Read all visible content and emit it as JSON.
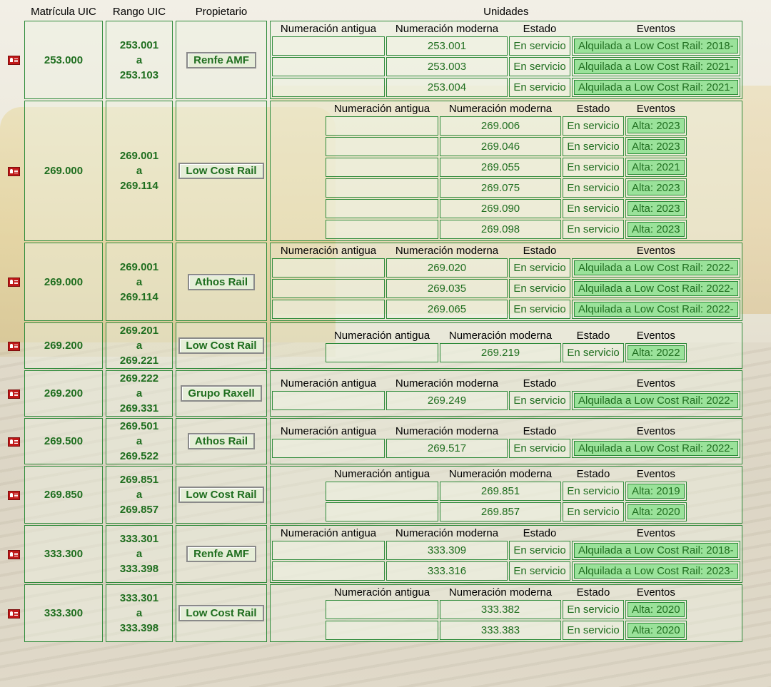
{
  "headers": {
    "matricula": "Matrícula UIC",
    "rango": "Rango UIC",
    "propietario": "Propietario",
    "unidades": "Unidades"
  },
  "sub_headers": {
    "old": "Numeración antigua",
    "modern": "Numeración moderna",
    "estado": "Estado",
    "eventos": "Eventos"
  },
  "range_separator": "a",
  "icon": "id-card-icon",
  "colors": {
    "border": "#2e8b3a",
    "text": "#1f6e1f",
    "event_bg": "#9ae29a"
  },
  "groups": [
    {
      "matricula": "253.000",
      "range_from": "253.001",
      "range_to": "253.103",
      "owner": "Renfe AMF",
      "units": [
        {
          "old": "",
          "modern": "253.001",
          "estado": "En servicio",
          "evento": "Alquilada a Low Cost Rail: 2018-"
        },
        {
          "old": "",
          "modern": "253.003",
          "estado": "En servicio",
          "evento": "Alquilada a Low Cost Rail: 2021-"
        },
        {
          "old": "",
          "modern": "253.004",
          "estado": "En servicio",
          "evento": "Alquilada a Low Cost Rail: 2021-"
        }
      ]
    },
    {
      "matricula": "269.000",
      "range_from": "269.001",
      "range_to": "269.114",
      "owner": "Low Cost Rail",
      "units": [
        {
          "old": "",
          "modern": "269.006",
          "estado": "En servicio",
          "evento": "Alta: 2023"
        },
        {
          "old": "",
          "modern": "269.046",
          "estado": "En servicio",
          "evento": "Alta: 2023"
        },
        {
          "old": "",
          "modern": "269.055",
          "estado": "En servicio",
          "evento": "Alta: 2021"
        },
        {
          "old": "",
          "modern": "269.075",
          "estado": "En servicio",
          "evento": "Alta: 2023"
        },
        {
          "old": "",
          "modern": "269.090",
          "estado": "En servicio",
          "evento": "Alta: 2023"
        },
        {
          "old": "",
          "modern": "269.098",
          "estado": "En servicio",
          "evento": "Alta: 2023"
        }
      ]
    },
    {
      "matricula": "269.000",
      "range_from": "269.001",
      "range_to": "269.114",
      "owner": "Athos Rail",
      "units": [
        {
          "old": "",
          "modern": "269.020",
          "estado": "En servicio",
          "evento": "Alquilada a Low Cost Rail: 2022-"
        },
        {
          "old": "",
          "modern": "269.035",
          "estado": "En servicio",
          "evento": "Alquilada a Low Cost Rail: 2022-"
        },
        {
          "old": "",
          "modern": "269.065",
          "estado": "En servicio",
          "evento": "Alquilada a Low Cost Rail: 2022-"
        }
      ]
    },
    {
      "matricula": "269.200",
      "range_from": "269.201",
      "range_to": "269.221",
      "owner": "Low Cost Rail",
      "units": [
        {
          "old": "",
          "modern": "269.219",
          "estado": "En servicio",
          "evento": "Alta: 2022"
        }
      ]
    },
    {
      "matricula": "269.200",
      "range_from": "269.222",
      "range_to": "269.331",
      "owner": "Grupo Raxell",
      "units": [
        {
          "old": "",
          "modern": "269.249",
          "estado": "En servicio",
          "evento": "Alquilada a Low Cost Rail: 2022-"
        }
      ]
    },
    {
      "matricula": "269.500",
      "range_from": "269.501",
      "range_to": "269.522",
      "owner": "Athos Rail",
      "units": [
        {
          "old": "",
          "modern": "269.517",
          "estado": "En servicio",
          "evento": "Alquilada a Low Cost Rail: 2022-"
        }
      ]
    },
    {
      "matricula": "269.850",
      "range_from": "269.851",
      "range_to": "269.857",
      "owner": "Low Cost Rail",
      "units": [
        {
          "old": "",
          "modern": "269.851",
          "estado": "En servicio",
          "evento": "Alta: 2019"
        },
        {
          "old": "",
          "modern": "269.857",
          "estado": "En servicio",
          "evento": "Alta: 2020"
        }
      ]
    },
    {
      "matricula": "333.300",
      "range_from": "333.301",
      "range_to": "333.398",
      "owner": "Renfe AMF",
      "units": [
        {
          "old": "",
          "modern": "333.309",
          "estado": "En servicio",
          "evento": "Alquilada a Low Cost Rail: 2018-"
        },
        {
          "old": "",
          "modern": "333.316",
          "estado": "En servicio",
          "evento": "Alquilada a Low Cost Rail: 2023-"
        }
      ]
    },
    {
      "matricula": "333.300",
      "range_from": "333.301",
      "range_to": "333.398",
      "owner": "Low Cost Rail",
      "units": [
        {
          "old": "",
          "modern": "333.382",
          "estado": "En servicio",
          "evento": "Alta: 2020"
        },
        {
          "old": "",
          "modern": "333.383",
          "estado": "En servicio",
          "evento": "Alta: 2020"
        }
      ]
    }
  ]
}
